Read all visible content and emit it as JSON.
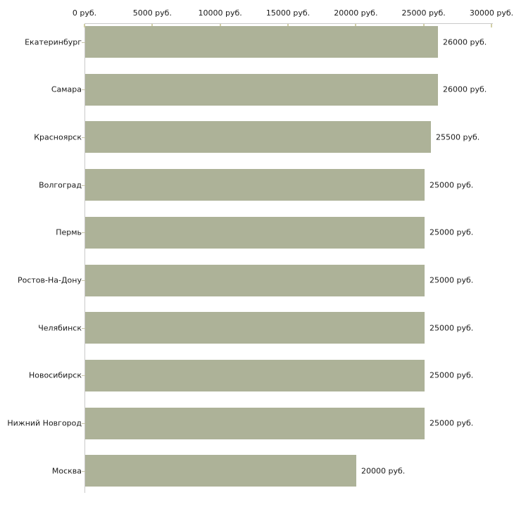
{
  "chart_data": {
    "type": "bar",
    "orientation": "horizontal",
    "title": "",
    "xlabel": "",
    "ylabel": "",
    "grid": false,
    "legend": null,
    "xlim": [
      0,
      30000
    ],
    "x_ticks": [
      0,
      5000,
      10000,
      15000,
      20000,
      25000,
      30000
    ],
    "x_tick_labels": [
      "0 руб.",
      "5000 руб.",
      "10000 руб.",
      "15000 руб.",
      "20000 руб.",
      "25000 руб.",
      "30000 руб."
    ],
    "categories": [
      "Екатеринбург",
      "Самара",
      "Красноярск",
      "Волгоград",
      "Пермь",
      "Ростов-На-Дону",
      "Челябинск",
      "Новосибирск",
      "Нижний Новгород",
      "Москва"
    ],
    "values": [
      26000,
      26000,
      25500,
      25000,
      25000,
      25000,
      25000,
      25000,
      25000,
      20000
    ],
    "value_labels": [
      "26000 руб.",
      "26000 руб.",
      "25500 руб.",
      "25000 руб.",
      "25000 руб.",
      "25000 руб.",
      "25000 руб.",
      "25000 руб.",
      "25000 руб.",
      "20000 руб."
    ],
    "colors": {
      "bar": "#adb298",
      "axis_line": "#c9c9c9",
      "x_tick_mark": "#d2cfa6",
      "category_tick": "#c6c3a8",
      "text": "#1a1a1a",
      "background": "#ffffff"
    }
  }
}
